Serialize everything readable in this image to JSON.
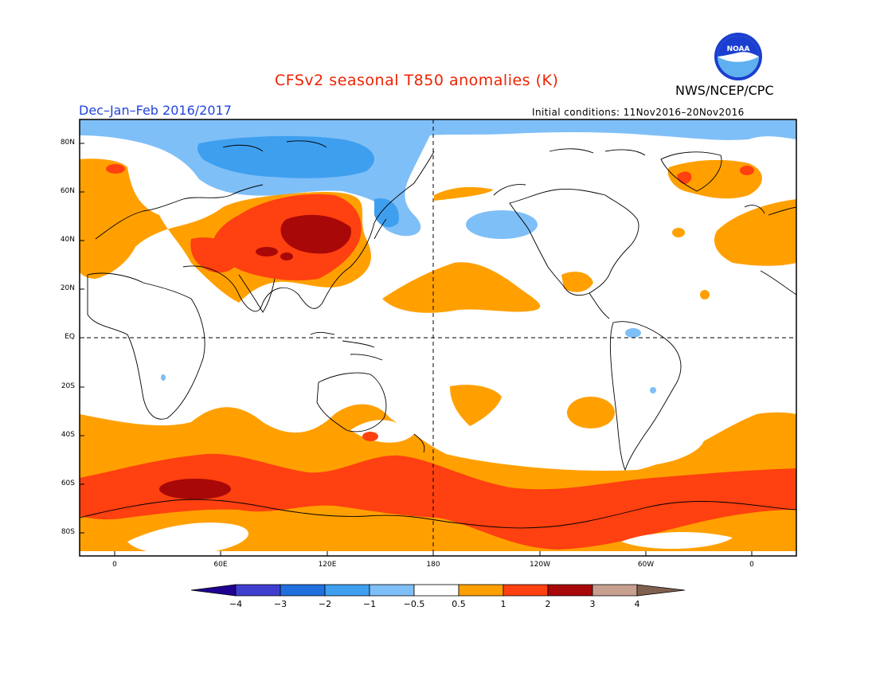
{
  "title": "CFSv2 seasonal T850 anomalies (K)",
  "season": "Dec–Jan–Feb 2016/2017",
  "agency": "NWS/NCEP/CPC",
  "logo_text": "NOAA",
  "initial_conditions": "Initial conditions: 11Nov2016–20Nov2016",
  "lat_labels": [
    "80N",
    "60N",
    "40N",
    "20N",
    "EQ",
    "20S",
    "40S",
    "60S",
    "80S"
  ],
  "lon_labels": [
    "0",
    "60E",
    "120E",
    "180",
    "120W",
    "60W",
    "0"
  ],
  "colorbar": {
    "labels": [
      "−4",
      "−3",
      "−2",
      "−1",
      "−0.5",
      "0.5",
      "1",
      "2",
      "3",
      "4"
    ],
    "colors": {
      "lt_m4": "#200090",
      "m4_m3": "#3f3fcf",
      "m3_m2": "#1f6fdf",
      "m2_m1": "#3f9fef",
      "m1_m05": "#7fbff7",
      "neutral": "#ffffff",
      "p05_1": "#ffa000",
      "p1_2": "#ff4010",
      "p2_3": "#a80808",
      "p3_4": "#c8a090",
      "gt_4": "#806050"
    }
  }
}
